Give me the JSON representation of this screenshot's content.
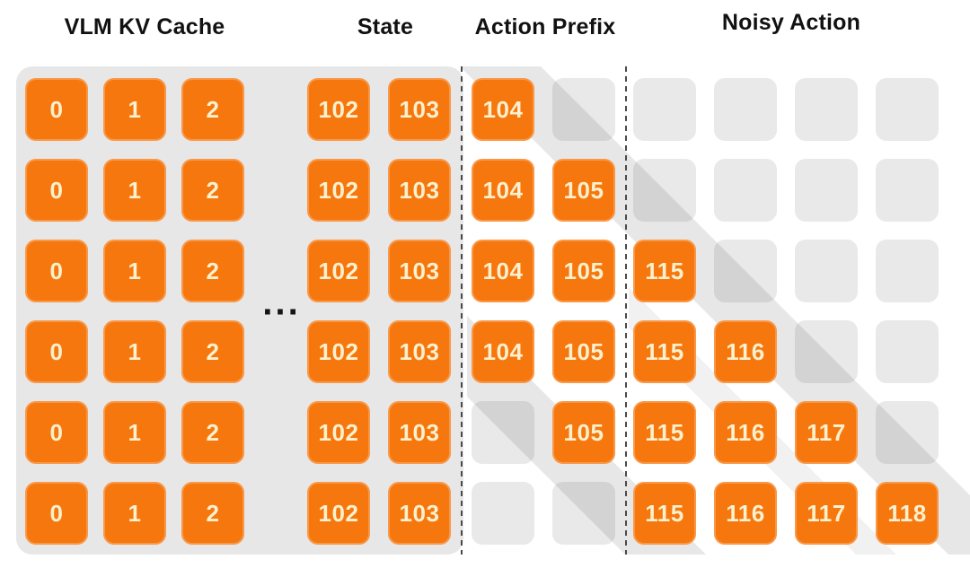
{
  "headers": [
    {
      "label": "VLM KV Cache"
    },
    {
      "label": "State"
    },
    {
      "label": "Action Prefix"
    },
    {
      "label": "Noisy Action"
    }
  ],
  "ellipsis": "...",
  "colors": {
    "orange": "#F6770E",
    "cell_text": "#FCF1CE",
    "gray_cell": "#E9E9E9",
    "panel": "#E7E7E7",
    "header_text": "#111111",
    "dash": "#4A4A4A",
    "shade_strong": "rgba(0,0,0,0.095)",
    "shade_soft": "rgba(0,0,0,0.055)"
  },
  "grid": {
    "column_labels": [
      "0",
      "1",
      "2",
      "102",
      "103",
      "104",
      "105",
      "115",
      "116",
      "117",
      "118"
    ],
    "rows": [
      [
        "o",
        "o",
        "o",
        "o",
        "o",
        "o",
        "g",
        "g",
        "g",
        "g",
        "g"
      ],
      [
        "o",
        "o",
        "o",
        "o",
        "o",
        "o",
        "o",
        "g",
        "g",
        "g",
        "g"
      ],
      [
        "o",
        "o",
        "o",
        "o",
        "o",
        "o",
        "o",
        "o",
        "g",
        "g",
        "g"
      ],
      [
        "o",
        "o",
        "o",
        "o",
        "o",
        "o",
        "o",
        "o",
        "o",
        "g",
        "g"
      ],
      [
        "o",
        "o",
        "o",
        "o",
        "o",
        "g",
        "o",
        "o",
        "o",
        "o",
        "g"
      ],
      [
        "o",
        "o",
        "o",
        "o",
        "o",
        "g",
        "g",
        "o",
        "o",
        "o",
        "o"
      ]
    ]
  }
}
